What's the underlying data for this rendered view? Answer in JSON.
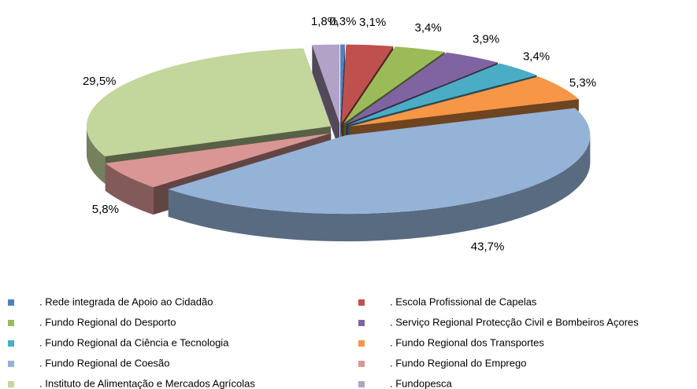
{
  "chart_data": {
    "type": "pie3d",
    "categories": [
      ". Rede integrada de Apoio ao Cidadão",
      ". Escola Profissional de Capelas",
      ". Fundo Regional do Desporto",
      ". Serviço Regional Protecção Civil e Bombeiros Açores",
      ". Fundo Regional da Ciência e Tecnologia",
      ". Fundo Regional dos Transportes",
      ". Fundo Regional de Coesão",
      ". Fundo Regional do Emprego",
      ". Instituto de Alimentação e Mercados Agrícolas",
      ". Fundopesca"
    ],
    "values": [
      0.3,
      3.1,
      3.4,
      3.9,
      3.4,
      5.3,
      43.7,
      5.8,
      29.5,
      1.8
    ],
    "value_labels": [
      "0,3%",
      "3,1%",
      "3,4%",
      "3,9%",
      "3,4%",
      "5,3%",
      "43,7%",
      "5,8%",
      "29,5%",
      "1,8%"
    ],
    "colors": [
      "#4f81bd",
      "#c0504d",
      "#9bbb59",
      "#8064a2",
      "#4bacc6",
      "#f79646",
      "#95b3d7",
      "#d99694",
      "#c3d69b",
      "#b3a2c7"
    ]
  }
}
